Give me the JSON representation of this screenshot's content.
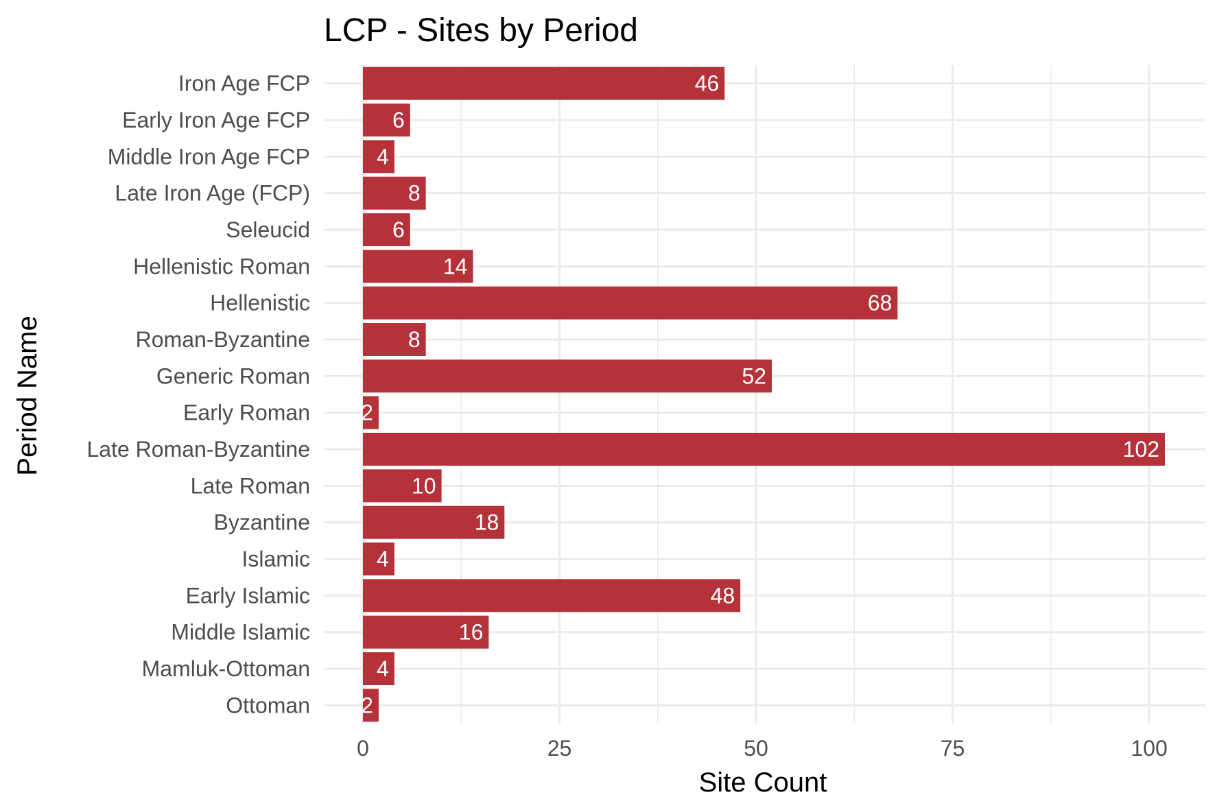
{
  "chart_data": {
    "type": "bar",
    "orientation": "horizontal",
    "title": "LCP - Sites by Period",
    "xlabel": "Site Count",
    "ylabel": "Period Name",
    "xlim": [
      0,
      106
    ],
    "x_ticks": [
      0,
      25,
      50,
      75,
      100
    ],
    "x_tick_labels": [
      "0",
      "25",
      "50",
      "75",
      "100"
    ],
    "grid": true,
    "legend": "none",
    "bar_color": "#B5323A",
    "label_color": "#FFFFFF",
    "categories": [
      "Iron Age FCP",
      "Early Iron Age FCP",
      "Middle Iron Age FCP",
      "Late Iron Age (FCP)",
      "Seleucid",
      "Hellenistic Roman",
      "Hellenistic",
      "Roman-Byzantine",
      "Generic Roman",
      "Early Roman",
      "Late Roman-Byzantine",
      "Late Roman",
      "Byzantine",
      "Islamic",
      "Early Islamic",
      "Middle Islamic",
      "Mamluk-Ottoman",
      "Ottoman"
    ],
    "values": [
      46,
      6,
      4,
      8,
      6,
      14,
      68,
      8,
      52,
      2,
      102,
      10,
      18,
      4,
      48,
      16,
      4,
      2
    ],
    "value_labels": [
      "46",
      "6",
      "4",
      "8",
      "6",
      "14",
      "68",
      "8",
      "52",
      "2",
      "102",
      "10",
      "18",
      "4",
      "48",
      "16",
      "4",
      "2"
    ]
  }
}
